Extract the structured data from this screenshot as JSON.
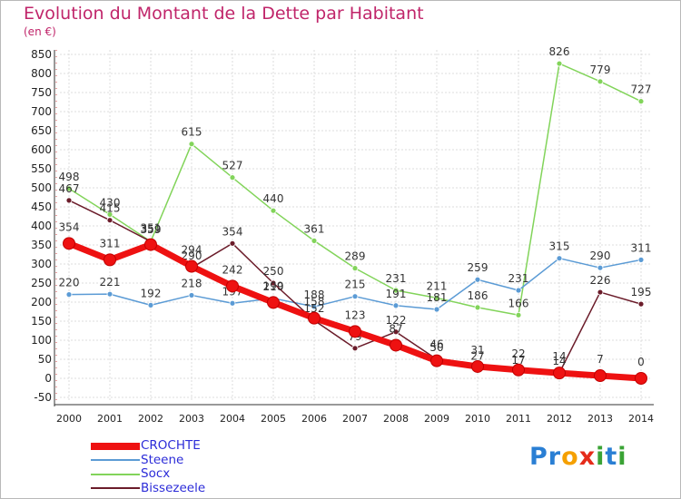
{
  "title": "Evolution du Montant de la Dette par Habitant",
  "subtitle": "(en €)",
  "logo": {
    "letters": [
      {
        "ch": "P",
        "color": "#2a7fd4"
      },
      {
        "ch": "r",
        "color": "#2a7fd4"
      },
      {
        "ch": "o",
        "color": "#f5a000"
      },
      {
        "ch": "x",
        "color": "#e52b1a"
      },
      {
        "ch": "i",
        "color": "#3aa335"
      },
      {
        "ch": "t",
        "color": "#2a7fd4"
      },
      {
        "ch": "i",
        "color": "#3aa335"
      }
    ]
  },
  "chart_data": {
    "type": "line",
    "title": "Evolution du Montant de la Dette par Habitant",
    "subtitle": "(en €)",
    "x": [
      2000,
      2001,
      2002,
      2003,
      2004,
      2005,
      2006,
      2007,
      2008,
      2009,
      2010,
      2011,
      2012,
      2013,
      2014
    ],
    "ylim": [
      -50,
      850
    ],
    "yticks": [
      -50,
      0,
      50,
      100,
      150,
      200,
      250,
      300,
      350,
      400,
      450,
      500,
      550,
      600,
      650,
      700,
      750,
      800,
      850
    ],
    "grid": true,
    "legend_position": "bottom-left",
    "series": [
      {
        "name": "Socx",
        "color": "#82d45a",
        "values": [
          498,
          430,
          359,
          615,
          527,
          440,
          361,
          289,
          231,
          211,
          186,
          166,
          826,
          779,
          727
        ]
      },
      {
        "name": "Steene",
        "color": "#5b9bd5",
        "values": [
          220,
          221,
          192,
          218,
          197,
          210,
          188,
          215,
          191,
          181,
          259,
          231,
          315,
          290,
          311
        ]
      },
      {
        "name": "Bissezeele",
        "color": "#6b1c2a",
        "values": [
          467,
          415,
          359,
          290,
          354,
          250,
          152,
          79,
          122,
          50,
          27,
          17,
          14,
          226,
          195
        ]
      },
      {
        "name": "CROCHTE",
        "color": "#ee1111",
        "values": [
          354,
          311,
          351,
          294,
          242,
          199,
          158,
          123,
          87,
          46,
          31,
          22,
          14,
          7,
          0
        ]
      }
    ]
  }
}
